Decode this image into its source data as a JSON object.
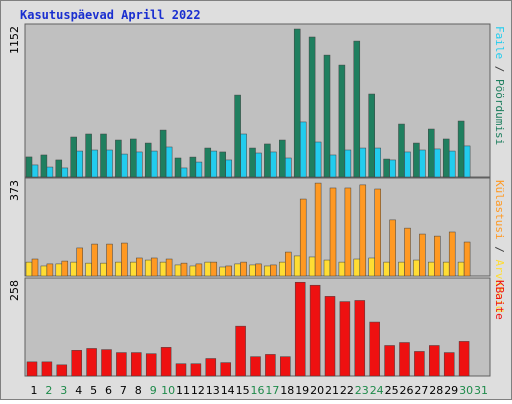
{
  "title": "Kasutuspäevad Aprill 2022",
  "chart_data": [
    {
      "type": "bar",
      "ylim": [
        0,
        1152
      ],
      "series": [
        {
          "name": "Pöördumisi",
          "color": "#1f7f5f",
          "values": [
            153,
            168,
            130,
            305,
            328,
            328,
            282,
            290,
            259,
            358,
            145,
            152,
            221,
            191,
            625,
            221,
            252,
            282,
            1129,
            1068,
            930,
            854,
            1037,
            633,
            137,
            404,
            259,
            366,
            290,
            427,
            null
          ]
        },
        {
          "name": "Faile",
          "color": "#22ccee",
          "values": [
            92,
            76,
            69,
            198,
            206,
            206,
            175,
            191,
            198,
            229,
            69,
            114,
            198,
            130,
            328,
            183,
            191,
            145,
            420,
            267,
            168,
            206,
            221,
            221,
            130,
            191,
            206,
            214,
            198,
            237,
            null
          ]
        }
      ]
    },
    {
      "type": "bar",
      "ylim": [
        0,
        373
      ],
      "series": [
        {
          "name": "Arvuteid",
          "color": "#ffdd33",
          "values": [
            54,
            39,
            47,
            54,
            50,
            50,
            54,
            54,
            62,
            54,
            43,
            39,
            54,
            35,
            47,
            43,
            39,
            54,
            78,
            74,
            62,
            54,
            66,
            70,
            54,
            54,
            62,
            54,
            54,
            54,
            null
          ]
        },
        {
          "name": "Külastusi",
          "color": "#ff9922",
          "values": [
            66,
            47,
            58,
            109,
            124,
            124,
            128,
            70,
            70,
            66,
            50,
            47,
            54,
            39,
            54,
            47,
            43,
            93,
            299,
            361,
            342,
            342,
            354,
            338,
            218,
            186,
            163,
            155,
            171,
            132,
            null
          ]
        }
      ]
    },
    {
      "type": "bar",
      "ylim": [
        0,
        258
      ],
      "categories": [
        "1",
        "2",
        "3",
        "4",
        "5",
        "6",
        "7",
        "8",
        "9",
        "10",
        "11",
        "12",
        "13",
        "14",
        "15",
        "16",
        "17",
        "18",
        "19",
        "20",
        "21",
        "22",
        "23",
        "24",
        "25",
        "26",
        "27",
        "28",
        "29",
        "30",
        "31"
      ],
      "category_colors": [
        "#000000",
        "#1e8a4a",
        "#1e8a4a",
        "#000000",
        "#000000",
        "#000000",
        "#000000",
        "#000000",
        "#1e8a4a",
        "#1e8a4a",
        "#000000",
        "#000000",
        "#000000",
        "#000000",
        "#000000",
        "#1e8a4a",
        "#1e8a4a",
        "#000000",
        "#000000",
        "#000000",
        "#000000",
        "#000000",
        "#1e8a4a",
        "#1e8a4a",
        "#000000",
        "#000000",
        "#000000",
        "#000000",
        "#000000",
        "#1e8a4a",
        "#1e8a4a"
      ],
      "series": [
        {
          "name": "KBaite",
          "color": "#ee1111",
          "values": [
            38,
            38,
            30,
            69,
            74,
            71,
            63,
            63,
            60,
            77,
            33,
            33,
            47,
            36,
            134,
            52,
            58,
            52,
            252,
            244,
            214,
            200,
            203,
            145,
            82,
            90,
            66,
            82,
            63,
            93,
            null
          ]
        }
      ]
    }
  ]
}
